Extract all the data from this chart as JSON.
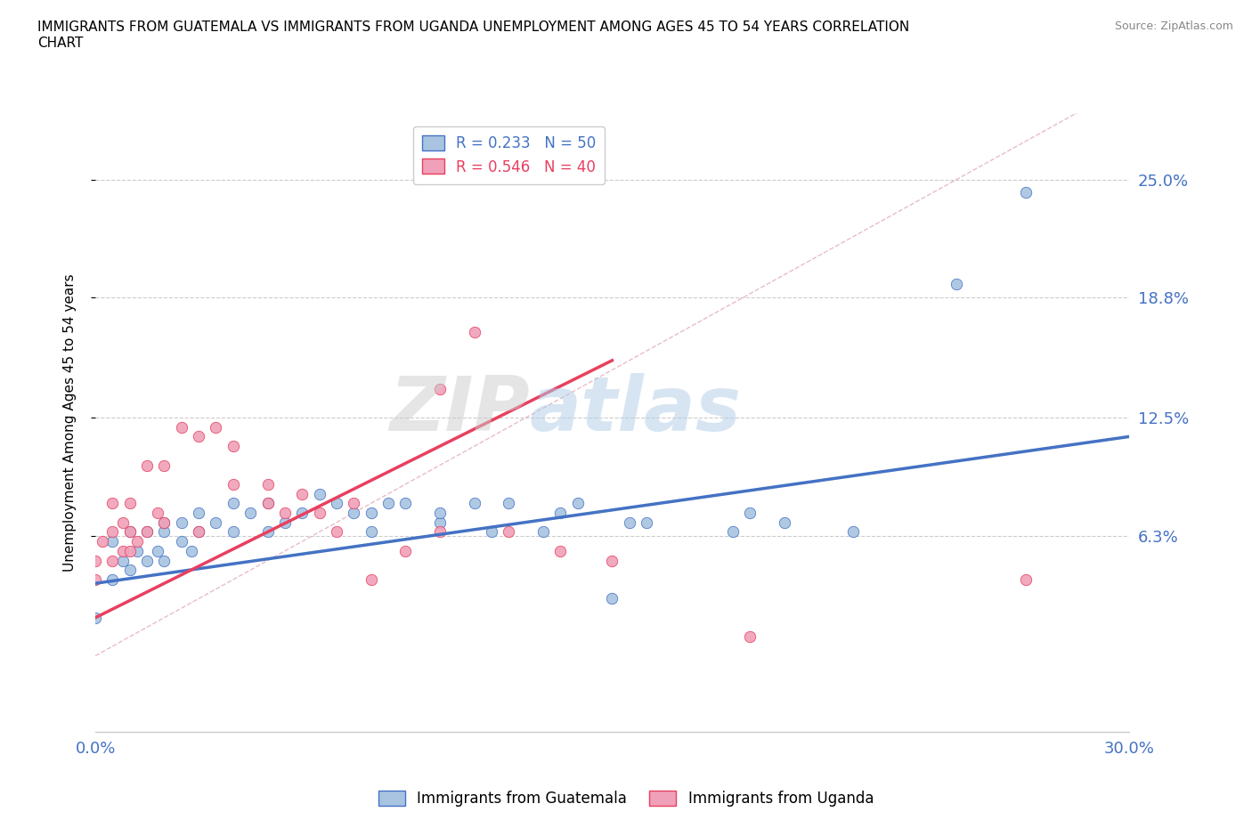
{
  "title": "IMMIGRANTS FROM GUATEMALA VS IMMIGRANTS FROM UGANDA UNEMPLOYMENT AMONG AGES 45 TO 54 YEARS CORRELATION\nCHART",
  "source": "Source: ZipAtlas.com",
  "ylabel": "Unemployment Among Ages 45 to 54 years",
  "xlabel": "",
  "xlim": [
    0.0,
    0.3
  ],
  "ylim": [
    -0.04,
    0.285
  ],
  "xticks": [
    0.0,
    0.05,
    0.1,
    0.15,
    0.2,
    0.25,
    0.3
  ],
  "xtick_labels": [
    "0.0%",
    "",
    "",
    "",
    "",
    "",
    "30.0%"
  ],
  "ytick_labels": [
    "6.3%",
    "12.5%",
    "18.8%",
    "25.0%"
  ],
  "ytick_values": [
    0.063,
    0.125,
    0.188,
    0.25
  ],
  "r_guatemala": 0.233,
  "n_guatemala": 50,
  "r_uganda": 0.546,
  "n_uganda": 40,
  "color_guatemala": "#a8c4e0",
  "color_uganda": "#f0a0b8",
  "color_line_guatemala": "#4472c4",
  "color_line_uganda": "#e84060",
  "watermark_zip": "ZIP",
  "watermark_atlas": "atlas",
  "guatemala_x": [
    0.0,
    0.005,
    0.005,
    0.008,
    0.01,
    0.01,
    0.012,
    0.015,
    0.015,
    0.018,
    0.02,
    0.02,
    0.02,
    0.025,
    0.025,
    0.028,
    0.03,
    0.03,
    0.035,
    0.04,
    0.04,
    0.045,
    0.05,
    0.05,
    0.055,
    0.06,
    0.065,
    0.07,
    0.075,
    0.08,
    0.08,
    0.085,
    0.09,
    0.1,
    0.1,
    0.11,
    0.115,
    0.12,
    0.13,
    0.135,
    0.14,
    0.15,
    0.155,
    0.16,
    0.185,
    0.19,
    0.2,
    0.22,
    0.25,
    0.27
  ],
  "guatemala_y": [
    0.02,
    0.04,
    0.06,
    0.05,
    0.045,
    0.065,
    0.055,
    0.05,
    0.065,
    0.055,
    0.05,
    0.065,
    0.07,
    0.06,
    0.07,
    0.055,
    0.065,
    0.075,
    0.07,
    0.065,
    0.08,
    0.075,
    0.065,
    0.08,
    0.07,
    0.075,
    0.085,
    0.08,
    0.075,
    0.065,
    0.075,
    0.08,
    0.08,
    0.07,
    0.075,
    0.08,
    0.065,
    0.08,
    0.065,
    0.075,
    0.08,
    0.03,
    0.07,
    0.07,
    0.065,
    0.075,
    0.07,
    0.065,
    0.195,
    0.243
  ],
  "uganda_x": [
    0.0,
    0.0,
    0.002,
    0.005,
    0.005,
    0.005,
    0.008,
    0.008,
    0.01,
    0.01,
    0.01,
    0.012,
    0.015,
    0.015,
    0.018,
    0.02,
    0.02,
    0.025,
    0.03,
    0.03,
    0.035,
    0.04,
    0.04,
    0.05,
    0.05,
    0.055,
    0.06,
    0.065,
    0.07,
    0.075,
    0.08,
    0.09,
    0.1,
    0.1,
    0.11,
    0.12,
    0.135,
    0.15,
    0.19,
    0.27
  ],
  "uganda_y": [
    0.04,
    0.05,
    0.06,
    0.05,
    0.065,
    0.08,
    0.055,
    0.07,
    0.055,
    0.065,
    0.08,
    0.06,
    0.065,
    0.1,
    0.075,
    0.07,
    0.1,
    0.12,
    0.065,
    0.115,
    0.12,
    0.09,
    0.11,
    0.08,
    0.09,
    0.075,
    0.085,
    0.075,
    0.065,
    0.08,
    0.04,
    0.055,
    0.065,
    0.14,
    0.17,
    0.065,
    0.055,
    0.05,
    0.01,
    0.04
  ],
  "trend_guatemala_x0": 0.0,
  "trend_guatemala_y0": 0.038,
  "trend_guatemala_x1": 0.3,
  "trend_guatemala_y1": 0.115,
  "trend_uganda_x0": 0.0,
  "trend_uganda_y0": 0.02,
  "trend_uganda_x1": 0.15,
  "trend_uganda_y1": 0.155
}
